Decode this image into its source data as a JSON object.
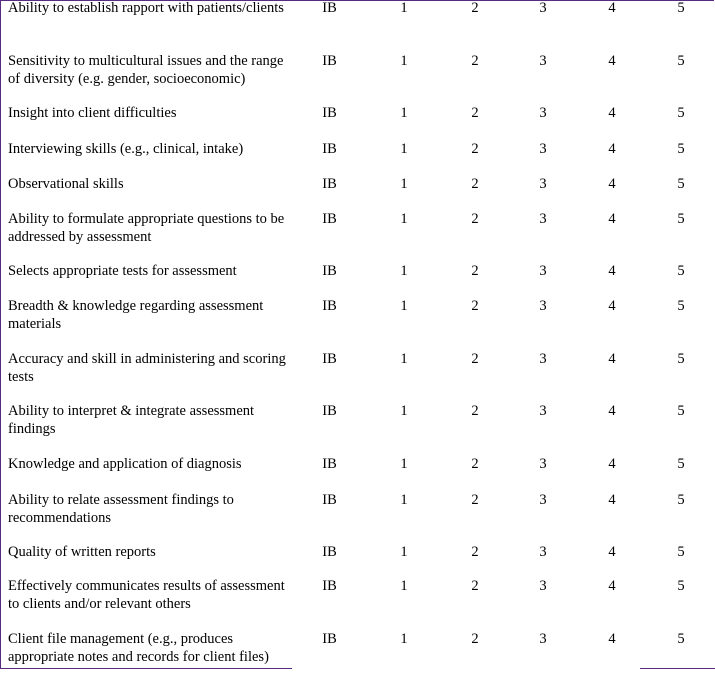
{
  "rows": [
    {
      "label": "Ability to establish rapport with patients/clients",
      "ib": "IB",
      "r1": "1",
      "r2": "2",
      "r3": "3",
      "r4": "4",
      "r5": "5"
    },
    {
      "label": "Sensitivity to multicultural issues and the range of diversity (e.g. gender, socioeconomic)",
      "ib": "IB",
      "r1": "1",
      "r2": "2",
      "r3": "3",
      "r4": "4",
      "r5": "5"
    },
    {
      "label": "Insight into client difficulties",
      "ib": "IB",
      "r1": "1",
      "r2": "2",
      "r3": "3",
      "r4": "4",
      "r5": "5"
    },
    {
      "label": "Interviewing skills (e.g., clinical, intake)",
      "ib": "IB",
      "r1": "1",
      "r2": "2",
      "r3": "3",
      "r4": "4",
      "r5": "5"
    },
    {
      "label": "Observational skills",
      "ib": "IB",
      "r1": "1",
      "r2": "2",
      "r3": "3",
      "r4": "4",
      "r5": "5"
    },
    {
      "label": "Ability to formulate appropriate questions to be addressed by assessment",
      "ib": "IB",
      "r1": "1",
      "r2": "2",
      "r3": "3",
      "r4": "4",
      "r5": "5"
    },
    {
      "label": "Selects appropriate tests for assessment",
      "ib": "IB",
      "r1": "1",
      "r2": "2",
      "r3": "3",
      "r4": "4",
      "r5": "5"
    },
    {
      "label": "Breadth & knowledge regarding assessment materials",
      "ib": "IB",
      "r1": "1",
      "r2": "2",
      "r3": "3",
      "r4": "4",
      "r5": "5"
    },
    {
      "label": "Accuracy and skill in administering and scoring tests",
      "ib": "IB",
      "r1": "1",
      "r2": "2",
      "r3": "3",
      "r4": "4",
      "r5": "5"
    },
    {
      "label": "Ability to interpret & integrate assessment findings",
      "ib": "IB",
      "r1": "1",
      "r2": "2",
      "r3": "3",
      "r4": "4",
      "r5": "5"
    },
    {
      "label": "Knowledge and application of diagnosis",
      "ib": "IB",
      "r1": "1",
      "r2": "2",
      "r3": "3",
      "r4": "4",
      "r5": "5"
    },
    {
      "label": "Ability to relate assessment findings to recommendations",
      "ib": "IB",
      "r1": "1",
      "r2": "2",
      "r3": "3",
      "r4": "4",
      "r5": "5"
    },
    {
      "label": "Quality of written reports",
      "ib": "IB",
      "r1": "1",
      "r2": "2",
      "r3": "3",
      "r4": "4",
      "r5": "5"
    },
    {
      "label": "Effectively communicates results of assessment to clients and/or relevant others",
      "ib": "IB",
      "r1": "1",
      "r2": "2",
      "r3": "3",
      "r4": "4",
      "r5": "5"
    },
    {
      "label": "Client file management (e.g., produces appropriate notes and records for client files)",
      "ib": "IB",
      "r1": "1",
      "r2": "2",
      "r3": "3",
      "r4": "4",
      "r5": "5"
    }
  ]
}
